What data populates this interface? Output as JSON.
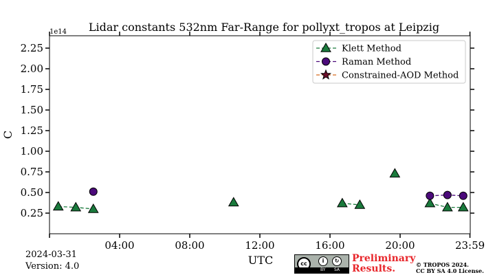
{
  "chart_data": {
    "type": "line",
    "title": "Lidar constants 532nm Far-Range for pollyxt_tropos at Leipzig",
    "xlabel": "UTC",
    "ylabel": "C",
    "y_multiplier": "1e14",
    "x_unit": "hours",
    "xlim": [
      0,
      24
    ],
    "ylim": [
      0,
      2.4
    ],
    "xticks": [
      {
        "value": 4,
        "label": "04:00"
      },
      {
        "value": 8,
        "label": "08:00"
      },
      {
        "value": 12,
        "label": "12:00"
      },
      {
        "value": 16,
        "label": "16:00"
      },
      {
        "value": 20,
        "label": "20:00"
      },
      {
        "value": 23.983,
        "label": "23:59"
      }
    ],
    "yticks": [
      {
        "value": 0.25,
        "label": "0.25"
      },
      {
        "value": 0.5,
        "label": "0.50"
      },
      {
        "value": 0.75,
        "label": "0.75"
      },
      {
        "value": 1.0,
        "label": "1.00"
      },
      {
        "value": 1.25,
        "label": "1.25"
      },
      {
        "value": 1.5,
        "label": "1.50"
      },
      {
        "value": 1.75,
        "label": "1.75"
      },
      {
        "value": 2.0,
        "label": "2.00"
      },
      {
        "value": 2.25,
        "label": "2.25"
      }
    ],
    "legend_position": "top-right",
    "series": [
      {
        "name": "Klett Method",
        "marker": "triangle",
        "color": "#1a7a3c",
        "line_color": "#1a7a3c",
        "segments": [
          [
            [
              0.5,
              0.33
            ],
            [
              1.5,
              0.32
            ],
            [
              2.5,
              0.3
            ]
          ],
          [
            [
              10.5,
              0.38
            ]
          ],
          [
            [
              16.7,
              0.37
            ],
            [
              17.7,
              0.35
            ]
          ],
          [
            [
              19.7,
              0.73
            ]
          ],
          [
            [
              21.7,
              0.37
            ],
            [
              22.7,
              0.32
            ],
            [
              23.6,
              0.32
            ]
          ]
        ]
      },
      {
        "name": "Raman Method",
        "marker": "circle",
        "color": "#4b0a7a",
        "line_color": "#4b0a7a",
        "segments": [
          [
            [
              2.5,
              0.51
            ]
          ],
          [
            [
              21.7,
              0.46
            ],
            [
              22.7,
              0.47
            ],
            [
              23.6,
              0.46
            ]
          ]
        ]
      },
      {
        "name": "Constrained-AOD Method",
        "marker": "star",
        "color": "#6b0f2a",
        "line_color": "#d86a1e",
        "segments": []
      }
    ]
  },
  "footer": {
    "date": "2024-03-31",
    "version": "Version: 4.0",
    "preliminary_line1": "Preliminary",
    "preliminary_line2": "Results.",
    "copyright_line1": "© TROPOS 2024.",
    "copyright_line2": "CC BY SA 4.0 License.",
    "cc_label": "cc",
    "cc_by": "BY",
    "cc_sa": "SA"
  }
}
